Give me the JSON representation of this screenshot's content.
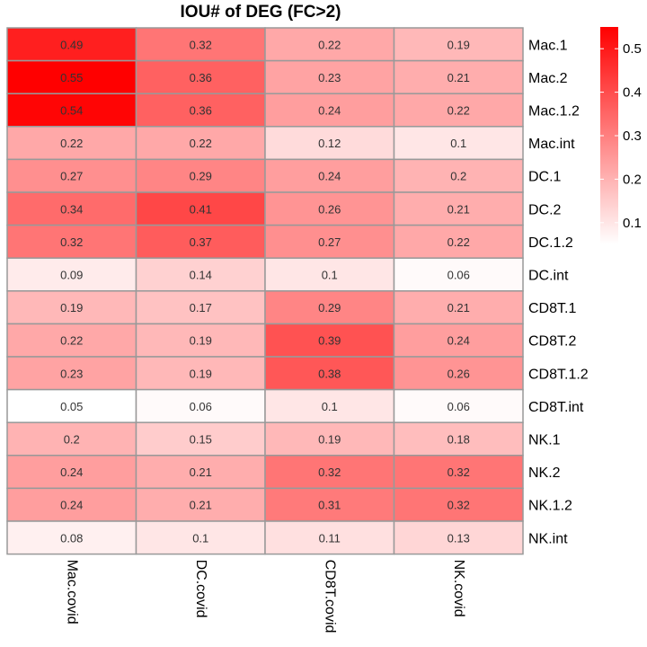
{
  "chart_data": {
    "type": "heatmap",
    "title": "IOU# of DEG (FC>2)",
    "rows": [
      "Mac.1",
      "Mac.2",
      "Mac.1.2",
      "Mac.int",
      "DC.1",
      "DC.2",
      "DC.1.2",
      "DC.int",
      "CD8T.1",
      "CD8T.2",
      "CD8T.1.2",
      "CD8T.int",
      "NK.1",
      "NK.2",
      "NK.1.2",
      "NK.int"
    ],
    "columns": [
      "Mac.covid",
      "DC.covid",
      "CD8T.covid",
      "NK.covid"
    ],
    "values": [
      [
        0.49,
        0.32,
        0.22,
        0.19
      ],
      [
        0.55,
        0.36,
        0.23,
        0.21
      ],
      [
        0.54,
        0.36,
        0.24,
        0.22
      ],
      [
        0.22,
        0.22,
        0.12,
        0.1
      ],
      [
        0.27,
        0.29,
        0.24,
        0.2
      ],
      [
        0.34,
        0.41,
        0.26,
        0.21
      ],
      [
        0.32,
        0.37,
        0.27,
        0.22
      ],
      [
        0.09,
        0.14,
        0.1,
        0.06
      ],
      [
        0.19,
        0.17,
        0.29,
        0.21
      ],
      [
        0.22,
        0.19,
        0.39,
        0.24
      ],
      [
        0.23,
        0.19,
        0.38,
        0.26
      ],
      [
        0.05,
        0.06,
        0.1,
        0.06
      ],
      [
        0.2,
        0.15,
        0.19,
        0.18
      ],
      [
        0.24,
        0.21,
        0.32,
        0.32
      ],
      [
        0.24,
        0.21,
        0.31,
        0.32
      ],
      [
        0.08,
        0.1,
        0.11,
        0.13
      ]
    ],
    "color_scale": {
      "low": "#ffffff",
      "high": "#ff0000",
      "min": 0.05,
      "max": 0.55
    },
    "legend": {
      "ticks": [
        0.1,
        0.2,
        0.3,
        0.4,
        0.5
      ],
      "placement": "top-right"
    },
    "border_color": "#999999"
  }
}
